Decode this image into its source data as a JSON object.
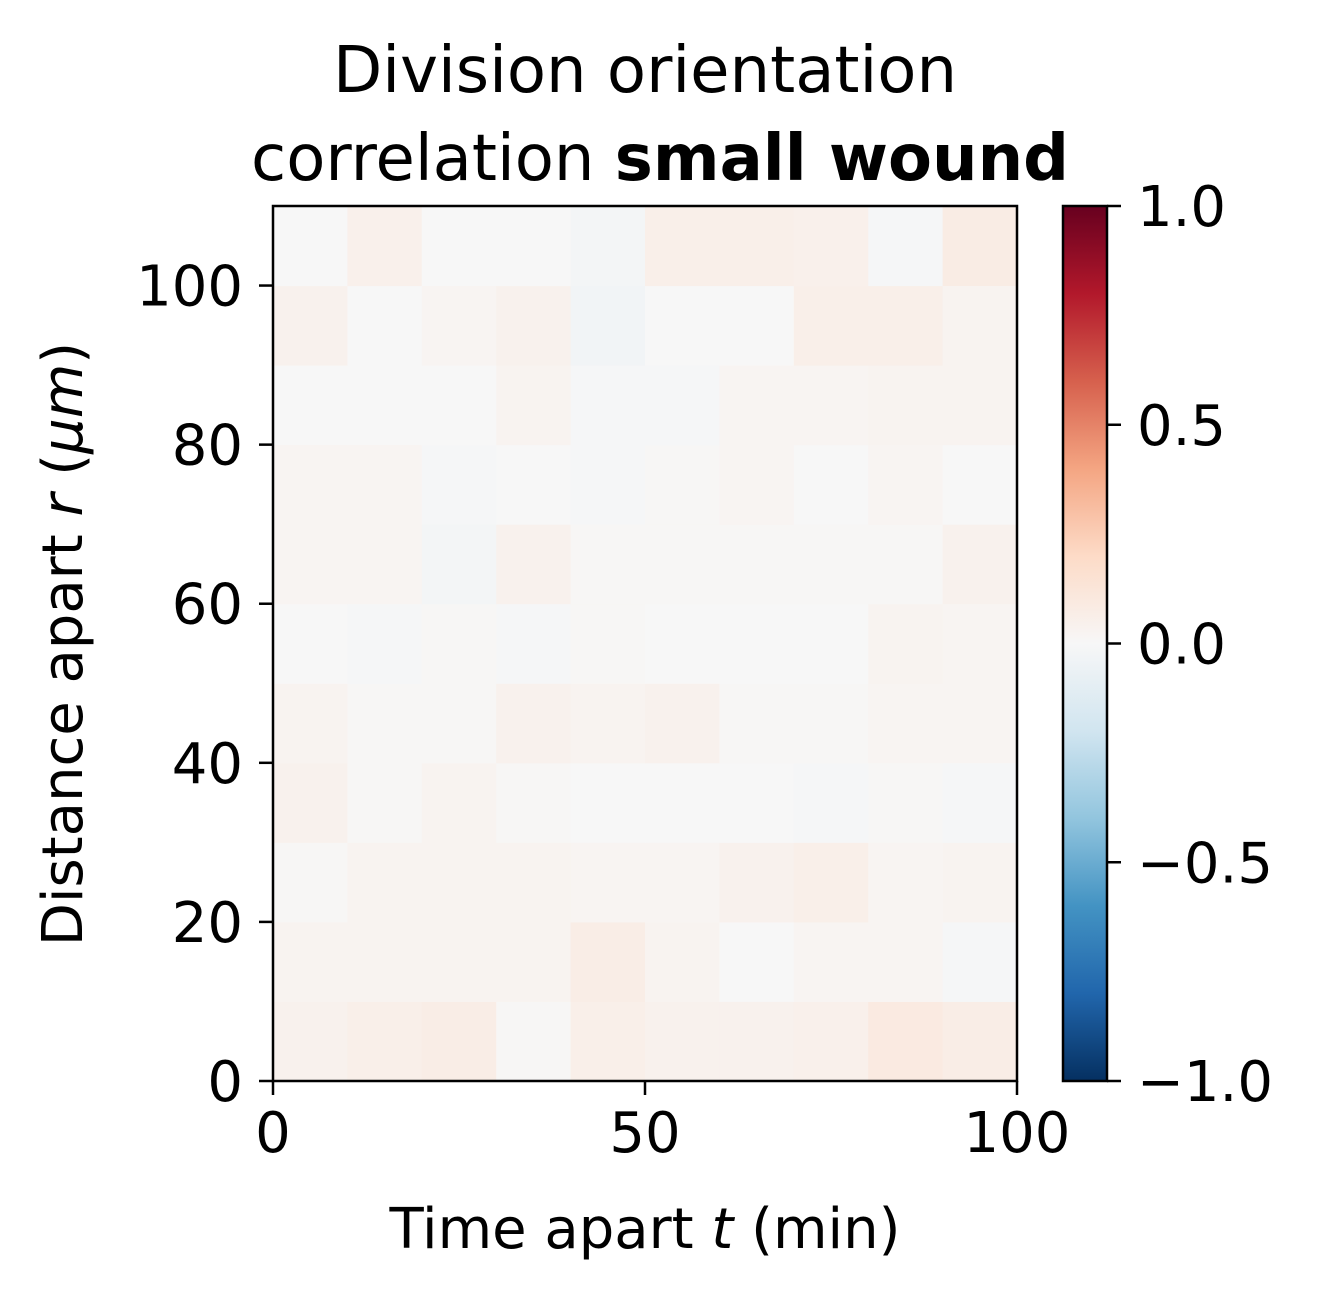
{
  "chart_data": {
    "type": "heatmap",
    "title_line1": "Division orientation",
    "title_line2_regular": "correlation ",
    "title_line2_bold": "small wound",
    "xlabel_pre": "Time apart ",
    "xlabel_var": "t",
    "xlabel_post": " (min)",
    "ylabel_pre": "Distance apart ",
    "ylabel_var": "r",
    "ylabel_post": " (",
    "ylabel_unit": "μm",
    "ylabel_close": ")",
    "xlim": [
      0,
      100
    ],
    "ylim": [
      0,
      110
    ],
    "x_ticks": [
      0,
      50,
      100
    ],
    "y_ticks": [
      0,
      20,
      40,
      60,
      80,
      100
    ],
    "x_tick_labels": [
      "0",
      "50",
      "100"
    ],
    "y_tick_labels": [
      "0",
      "20",
      "40",
      "60",
      "80",
      "100"
    ],
    "x_bin_width": 10,
    "y_bin_width": 10,
    "colormap": "RdBu_r",
    "vmin": -1.0,
    "vmax": 1.0,
    "colorbar_ticks": [
      1.0,
      0.5,
      0.0,
      -0.5,
      -1.0
    ],
    "colorbar_tick_labels": [
      "1.0",
      "0.5",
      "0.0",
      "−0.5",
      "−1.0"
    ],
    "values": [
      [
        0.04,
        0.06,
        0.07,
        0.01,
        0.06,
        0.04,
        0.04,
        0.05,
        0.09,
        0.07
      ],
      [
        0.03,
        0.03,
        0.03,
        0.03,
        0.07,
        0.03,
        0.0,
        0.02,
        0.02,
        -0.01
      ],
      [
        0.01,
        0.03,
        0.03,
        0.03,
        0.02,
        0.02,
        0.04,
        0.06,
        0.02,
        0.03
      ],
      [
        0.04,
        0.01,
        0.03,
        0.01,
        0.0,
        0.0,
        0.0,
        -0.01,
        0.01,
        -0.01
      ],
      [
        0.03,
        0.01,
        0.01,
        0.04,
        0.03,
        0.04,
        0.01,
        0.01,
        0.02,
        0.02
      ],
      [
        0.0,
        -0.01,
        0.01,
        -0.01,
        0.01,
        0.0,
        -0.0,
        0.0,
        0.03,
        0.02
      ],
      [
        0.02,
        0.02,
        -0.02,
        0.04,
        0.01,
        0.01,
        0.01,
        0.01,
        0.01,
        0.04
      ],
      [
        0.02,
        0.02,
        -0.01,
        -0.0,
        -0.01,
        0.01,
        0.02,
        0.0,
        0.02,
        0.0
      ],
      [
        0.0,
        -0.0,
        -0.0,
        0.03,
        -0.01,
        -0.01,
        0.02,
        0.02,
        0.03,
        0.03
      ],
      [
        0.04,
        -0.0,
        0.02,
        0.04,
        -0.03,
        0.0,
        0.0,
        0.06,
        0.06,
        0.03
      ],
      [
        0.0,
        0.05,
        -0.0,
        0.0,
        -0.02,
        0.06,
        0.06,
        0.05,
        -0.01,
        0.08
      ]
    ]
  }
}
